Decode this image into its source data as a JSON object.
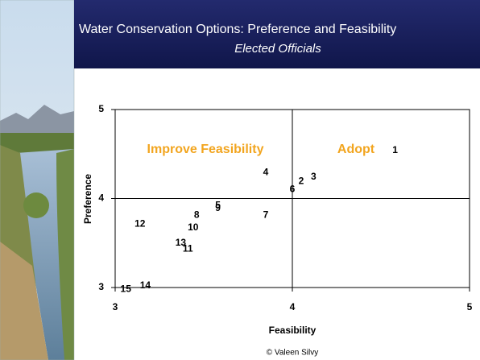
{
  "chart_data": {
    "type": "scatter",
    "title": "Water Conservation Options: Preference and Feasibility",
    "subtitle": "Elected Officials",
    "x_label": "Feasibility",
    "y_label": "Preference",
    "annotations": [
      "Improve Feasibility",
      "Adopt"
    ],
    "point_labels": [
      "1",
      "2",
      "3",
      "4",
      "5",
      "6",
      "7",
      "8",
      "9",
      "10",
      "11",
      "12",
      "13",
      "14",
      "15"
    ],
    "x": [
      4.58,
      4.05,
      4.12,
      3.85,
      3.58,
      4.0,
      3.85,
      3.46,
      3.58,
      3.44,
      3.41,
      3.14,
      3.37,
      3.17,
      3.06
    ],
    "y": [
      4.54,
      4.19,
      4.24,
      4.29,
      3.92,
      4.1,
      3.81,
      3.81,
      3.89,
      3.67,
      3.43,
      3.71,
      3.5,
      3.02,
      2.98
    ],
    "xlim": [
      3,
      5
    ],
    "xticks": [
      3,
      4,
      5
    ],
    "ylim": [
      3,
      5
    ],
    "yticks": [
      3,
      4,
      5
    ],
    "grid": "interior"
  },
  "footer": "© Valeen Silvy"
}
